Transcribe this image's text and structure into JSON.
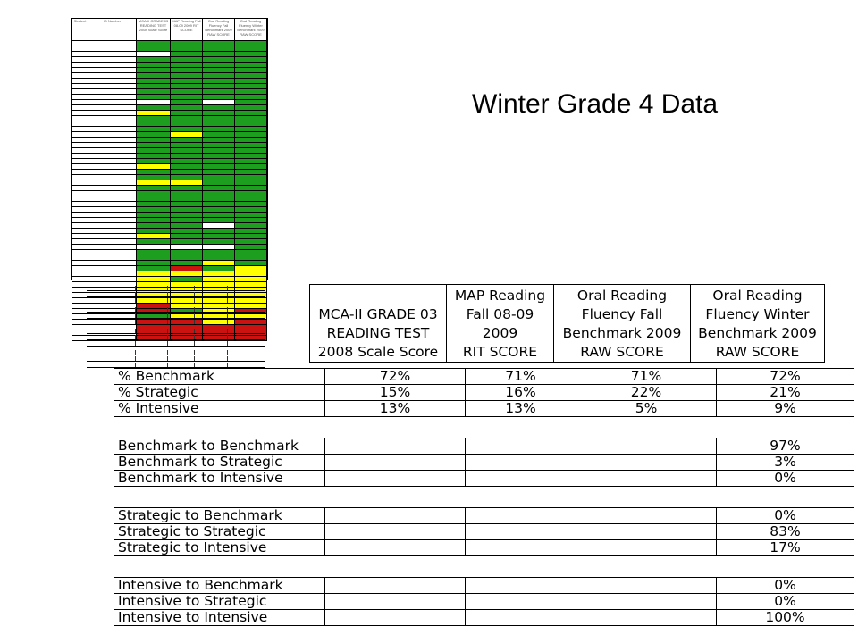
{
  "title": "Winter Grade 4 Data",
  "colors": {
    "green": "#1e9e1e",
    "yellow": "#ffff00",
    "red": "#cc1111",
    "white": "#ffffff"
  },
  "thumbnail": {
    "header_cells": [
      "Student",
      "ID Number",
      "MCA-II GRADE 03 READING TEST 2008 Scale Score",
      "MAP Reading Fall 08-09 2009 RIT SCORE",
      "Oral Reading Fluency Fall Benchmark 2009 RAW SCORE",
      "Oral Reading Fluency Winter Benchmark 2009 RAW SCORE"
    ],
    "rows": [
      [
        "green",
        "green",
        "green",
        "green"
      ],
      [
        "green",
        "green",
        "green",
        "green"
      ],
      [
        "white",
        "green",
        "green",
        "green"
      ],
      [
        "green",
        "green",
        "green",
        "green"
      ],
      [
        "green",
        "green",
        "green",
        "green"
      ],
      [
        "green",
        "green",
        "green",
        "green"
      ],
      [
        "green",
        "green",
        "green",
        "green"
      ],
      [
        "green",
        "green",
        "green",
        "green"
      ],
      [
        "green",
        "green",
        "green",
        "green"
      ],
      [
        "green",
        "green",
        "green",
        "green"
      ],
      [
        "green",
        "green",
        "green",
        "green"
      ],
      [
        "white",
        "green",
        "white",
        "green"
      ],
      [
        "green",
        "green",
        "green",
        "green"
      ],
      [
        "yellow",
        "green",
        "green",
        "green"
      ],
      [
        "green",
        "green",
        "green",
        "green"
      ],
      [
        "green",
        "green",
        "green",
        "green"
      ],
      [
        "green",
        "green",
        "green",
        "green"
      ],
      [
        "green",
        "yellow",
        "green",
        "green"
      ],
      [
        "green",
        "green",
        "green",
        "green"
      ],
      [
        "green",
        "green",
        "green",
        "green"
      ],
      [
        "green",
        "green",
        "green",
        "green"
      ],
      [
        "green",
        "green",
        "green",
        "green"
      ],
      [
        "green",
        "green",
        "green",
        "green"
      ],
      [
        "yellow",
        "green",
        "green",
        "green"
      ],
      [
        "green",
        "green",
        "green",
        "green"
      ],
      [
        "green",
        "green",
        "green",
        "green"
      ],
      [
        "yellow",
        "yellow",
        "green",
        "green"
      ],
      [
        "green",
        "green",
        "green",
        "green"
      ],
      [
        "green",
        "green",
        "green",
        "green"
      ],
      [
        "green",
        "green",
        "green",
        "green"
      ],
      [
        "green",
        "green",
        "green",
        "green"
      ],
      [
        "green",
        "green",
        "green",
        "green"
      ],
      [
        "green",
        "green",
        "green",
        "green"
      ],
      [
        "green",
        "green",
        "green",
        "green"
      ],
      [
        "green",
        "green",
        "white",
        "green"
      ],
      [
        "green",
        "green",
        "green",
        "green"
      ],
      [
        "yellow",
        "green",
        "green",
        "green"
      ],
      [
        "green",
        "green",
        "green",
        "green"
      ],
      [
        "white",
        "white",
        "white",
        "green"
      ],
      [
        "green",
        "green",
        "green",
        "green"
      ],
      [
        "green",
        "green",
        "green",
        "green"
      ],
      [
        "green",
        "green",
        "yellow",
        "green"
      ],
      [
        "green",
        "red",
        "green",
        "yellow"
      ],
      [
        "yellow",
        "yellow",
        "yellow",
        "yellow"
      ],
      [
        "yellow",
        "green",
        "yellow",
        "yellow"
      ],
      [
        "yellow",
        "yellow",
        "yellow",
        "yellow"
      ],
      [
        "yellow",
        "yellow",
        "yellow",
        "yellow"
      ],
      [
        "yellow",
        "yellow",
        "yellow",
        "yellow"
      ],
      [
        "yellow",
        "yellow",
        "yellow",
        "yellow"
      ],
      [
        "red",
        "yellow",
        "yellow",
        "yellow"
      ],
      [
        "red",
        "green",
        "yellow",
        "red"
      ],
      [
        "green",
        "yellow",
        "yellow",
        "yellow"
      ],
      [
        "red",
        "red",
        "yellow",
        "red"
      ],
      [
        "red",
        "red",
        "red",
        "red"
      ],
      [
        "red",
        "red",
        "red",
        "red"
      ],
      [
        "red",
        "red",
        "red",
        "red"
      ]
    ],
    "summary_rows": 12
  },
  "header": {
    "columns": [
      "MCA-II GRADE 03\nREADING TEST\n2008 Scale Score",
      "MAP Reading\nFall 08-09 2009\nRIT SCORE",
      "Oral Reading\nFluency Fall\nBenchmark 2009\nRAW SCORE",
      "Oral Reading\nFluency Winter\nBenchmark 2009\nRAW SCORE"
    ]
  },
  "tables": [
    {
      "rows": [
        {
          "label": "% Benchmark",
          "values": [
            "72%",
            "71%",
            "71%",
            "72%"
          ]
        },
        {
          "label": "% Strategic",
          "values": [
            "15%",
            "16%",
            "22%",
            "21%"
          ]
        },
        {
          "label": "% Intensive",
          "values": [
            "13%",
            "13%",
            "5%",
            "9%"
          ]
        }
      ]
    },
    {
      "rows": [
        {
          "label": "Benchmark to Benchmark",
          "values": [
            "",
            "",
            "",
            "97%"
          ]
        },
        {
          "label": "Benchmark to Strategic",
          "values": [
            "",
            "",
            "",
            "3%"
          ]
        },
        {
          "label": "Benchmark to Intensive",
          "values": [
            "",
            "",
            "",
            "0%"
          ]
        }
      ]
    },
    {
      "rows": [
        {
          "label": "Strategic to Benchmark",
          "values": [
            "",
            "",
            "",
            "0%"
          ]
        },
        {
          "label": "Strategic to Strategic",
          "values": [
            "",
            "",
            "",
            "83%"
          ]
        },
        {
          "label": "Strategic to Intensive",
          "values": [
            "",
            "",
            "",
            "17%"
          ]
        }
      ]
    },
    {
      "rows": [
        {
          "label": "Intensive to Benchmark",
          "values": [
            "",
            "",
            "",
            "0%"
          ]
        },
        {
          "label": "Intensive to Strategic",
          "values": [
            "",
            "",
            "",
            "0%"
          ]
        },
        {
          "label": "Intensive to Intensive",
          "values": [
            "",
            "",
            "",
            "100%"
          ]
        }
      ]
    }
  ]
}
